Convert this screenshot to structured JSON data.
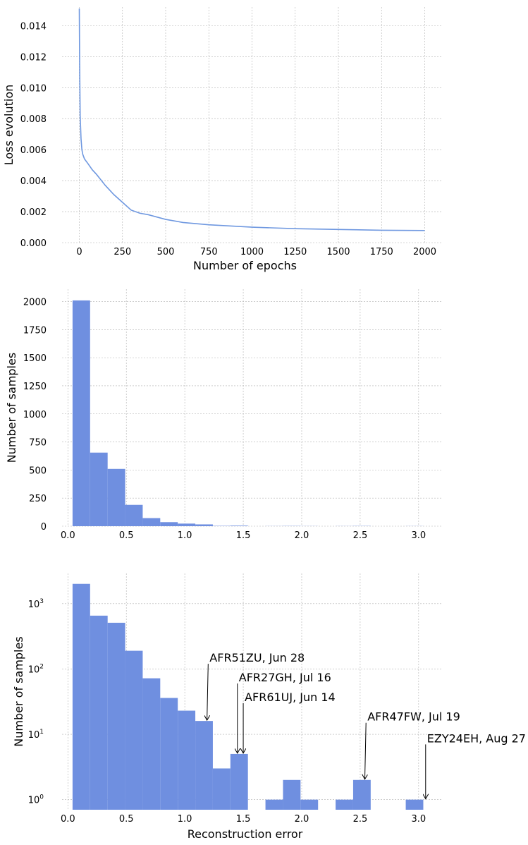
{
  "chart_data": [
    {
      "type": "line",
      "xlabel": "Number of epochs",
      "ylabel": "Loss evolution",
      "xlim": [
        -100,
        2100
      ],
      "ylim": [
        0,
        0.0152
      ],
      "grid": true,
      "xticks": [
        0,
        250,
        500,
        750,
        1000,
        1250,
        1500,
        1750,
        2000
      ],
      "xtick_labels": [
        "0",
        "250",
        "500",
        "750",
        "1000",
        "1250",
        "1500",
        "1750",
        "2000"
      ],
      "yticks": [
        0,
        0.002,
        0.004,
        0.006,
        0.008,
        0.01,
        0.012,
        0.014
      ],
      "ytick_labels": [
        "0.000",
        "0.002",
        "0.004",
        "0.006",
        "0.008",
        "0.010",
        "0.012",
        "0.014"
      ],
      "color": "#6f98e0",
      "series": [
        {
          "x": [
            0,
            2,
            5,
            10,
            15,
            20,
            30,
            50,
            75,
            100,
            150,
            200,
            250,
            300,
            350,
            400,
            500,
            600,
            750,
            1000,
            1250,
            1500,
            1750,
            2000
          ],
          "y": [
            0.0151,
            0.0115,
            0.0082,
            0.0067,
            0.006,
            0.0057,
            0.0054,
            0.0051,
            0.0047,
            0.0044,
            0.0037,
            0.0031,
            0.0026,
            0.0021,
            0.0019,
            0.0018,
            0.0015,
            0.0013,
            0.00115,
            0.001,
            0.0009,
            0.00085,
            0.0008,
            0.00078
          ]
        }
      ]
    },
    {
      "type": "bar",
      "xlabel": "",
      "ylabel": "Number of samples",
      "xlim": [
        -0.05,
        3.2
      ],
      "ylim": [
        0,
        2110
      ],
      "grid": true,
      "xticks": [
        0,
        0.5,
        1,
        1.5,
        2,
        2.5,
        3
      ],
      "xtick_labels": [
        "0.0",
        "0.5",
        "1.0",
        "1.5",
        "2.0",
        "2.5",
        "3.0"
      ],
      "yticks": [
        0,
        250,
        500,
        750,
        1000,
        1250,
        1500,
        1750,
        2000
      ],
      "ytick_labels": [
        "0",
        "250",
        "500",
        "750",
        "1000",
        "1250",
        "1500",
        "1750",
        "2000"
      ],
      "color": "#6f8fe0",
      "bin_edges": [
        0.04,
        0.19,
        0.34,
        0.49,
        0.64,
        0.79,
        0.94,
        1.09,
        1.24,
        1.39,
        1.54,
        1.69,
        1.84,
        1.99,
        2.14,
        2.29,
        2.44,
        2.59,
        2.74,
        2.89,
        3.04
      ],
      "values": [
        2010,
        655,
        510,
        190,
        72,
        36,
        23,
        16,
        3,
        5,
        0,
        1,
        2,
        1,
        0,
        1,
        2,
        0,
        0,
        1
      ]
    },
    {
      "type": "bar",
      "xlabel": "Reconstruction error",
      "ylabel": "Number of samples",
      "yscale": "log",
      "xlim": [
        -0.05,
        3.2
      ],
      "ylim": [
        0.7,
        2900
      ],
      "grid": true,
      "xticks": [
        0,
        0.5,
        1,
        1.5,
        2,
        2.5,
        3
      ],
      "xtick_labels": [
        "0.0",
        "0.5",
        "1.0",
        "1.5",
        "2.0",
        "2.5",
        "3.0"
      ],
      "yticks": [
        1,
        10,
        100,
        1000
      ],
      "ytick_base": "10",
      "ytick_exponents": [
        "0",
        "1",
        "2",
        "3"
      ],
      "color": "#6f8fe0",
      "bin_edges": [
        0.04,
        0.19,
        0.34,
        0.49,
        0.64,
        0.79,
        0.94,
        1.09,
        1.24,
        1.39,
        1.54,
        1.69,
        1.84,
        1.99,
        2.14,
        2.29,
        2.44,
        2.59,
        2.74,
        2.89,
        3.04
      ],
      "values": [
        2010,
        655,
        510,
        190,
        72,
        36,
        23,
        16,
        3,
        5,
        0,
        1,
        2,
        1,
        0,
        1,
        2,
        0,
        0,
        1
      ],
      "annotations": [
        {
          "text": "AFR51ZU, Jun 28",
          "tip": [
            1.19,
            16
          ],
          "anchor": [
            1.2,
            120
          ]
        },
        {
          "text": "AFR27GH, Jul 16",
          "tip": [
            1.45,
            5
          ],
          "anchor": [
            1.45,
            60
          ]
        },
        {
          "text": "AFR61UJ, Jun 14",
          "tip": [
            1.5,
            5
          ],
          "anchor": [
            1.5,
            30
          ]
        },
        {
          "text": "AFR47FW, Jul 19",
          "tip": [
            2.54,
            2
          ],
          "anchor": [
            2.55,
            15
          ]
        },
        {
          "text": "EZY24EH, Aug 27",
          "tip": [
            3.06,
            1
          ],
          "anchor": [
            3.06,
            7
          ]
        }
      ]
    }
  ]
}
